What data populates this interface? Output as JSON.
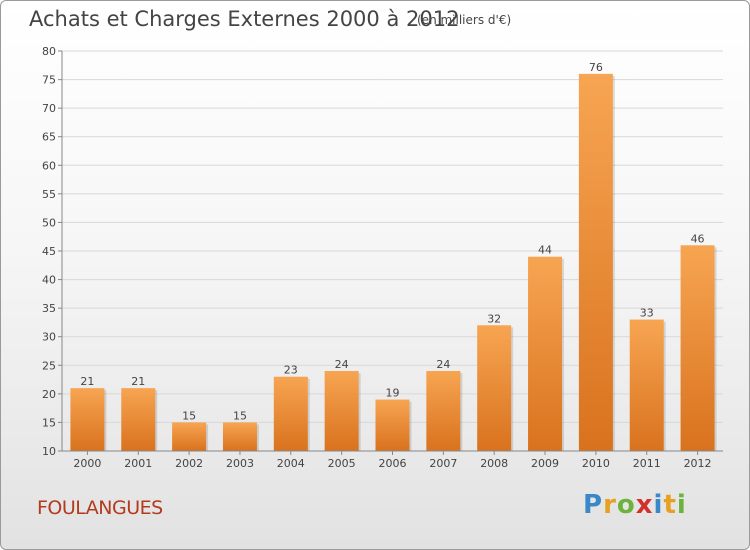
{
  "title": "Achats et Charges Externes 2000 à 2012",
  "subtitle": "(en milliers d'€)",
  "commune": "FOULANGUES",
  "logo": {
    "text": "Proxiti"
  },
  "colors": {
    "bar_top": "#f7a552",
    "bar_bottom": "#d9721e",
    "axis": "#888888",
    "grid": "#d8d8d8",
    "label": "#444444",
    "commune": "#b23a1e"
  },
  "chart_data": {
    "type": "bar",
    "categories": [
      "2000",
      "2001",
      "2002",
      "2003",
      "2004",
      "2005",
      "2006",
      "2007",
      "2008",
      "2009",
      "2010",
      "2011",
      "2012"
    ],
    "values": [
      21,
      21,
      15,
      15,
      23,
      24,
      19,
      24,
      32,
      44,
      76,
      33,
      46
    ],
    "ylim": [
      10,
      80
    ],
    "yticks": [
      10,
      15,
      20,
      25,
      30,
      35,
      40,
      45,
      50,
      55,
      60,
      65,
      70,
      75,
      80
    ],
    "grid": true,
    "data_labels": true
  }
}
